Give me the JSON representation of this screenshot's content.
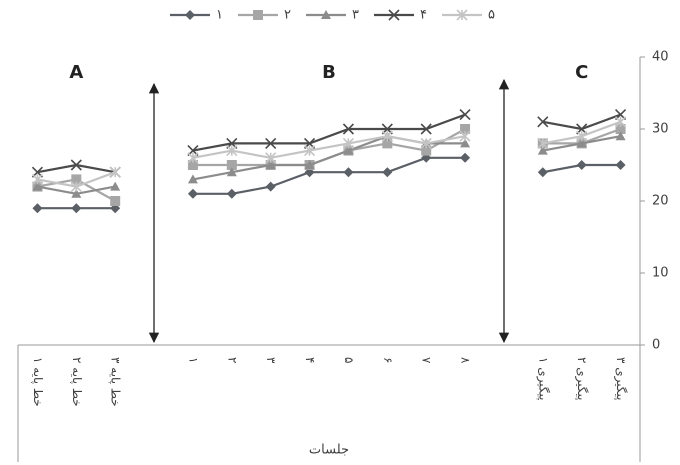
{
  "chart_data": {
    "type": "line",
    "categories": [
      "خط پایه ۱",
      "خط پایه ۲",
      "خط پایه ۳",
      null,
      "۱",
      "۲",
      "۳",
      "۴",
      "۵",
      "۶",
      "۷",
      "۸",
      null,
      "پیگیری ۱",
      "پیگیری ۲",
      "پیگیری ۳"
    ],
    "series": [
      {
        "name": "۱",
        "color": "#5b5f66",
        "marker": "diamond",
        "values": [
          19,
          19,
          19,
          null,
          21,
          21,
          22,
          24,
          24,
          24,
          26,
          26,
          null,
          24,
          25,
          25
        ]
      },
      {
        "name": "۲",
        "color": "#a6a6a6",
        "marker": "square",
        "values": [
          22,
          23,
          20,
          null,
          25,
          25,
          25,
          25,
          27,
          28,
          27,
          30,
          null,
          28,
          28,
          30
        ]
      },
      {
        "name": "۳",
        "color": "#8c8c8c",
        "marker": "triangle",
        "values": [
          22,
          21,
          22,
          null,
          23,
          24,
          25,
          25,
          27,
          29,
          28,
          28,
          null,
          27,
          28,
          29
        ]
      },
      {
        "name": "۴",
        "color": "#4a4a4a",
        "marker": "x",
        "values": [
          24,
          25,
          24,
          null,
          27,
          28,
          28,
          28,
          30,
          30,
          30,
          32,
          null,
          31,
          30,
          32
        ]
      },
      {
        "name": "۵",
        "color": "#c4c4c4",
        "marker": "star",
        "values": [
          23,
          22,
          24,
          null,
          26,
          27,
          26,
          27,
          28,
          29,
          28,
          29,
          null,
          28,
          29,
          31
        ]
      }
    ],
    "annotations": [
      "A",
      "B",
      "C"
    ],
    "x_label": "جلسات",
    "ylim": [
      0,
      40
    ],
    "yticks": [
      0,
      10,
      20,
      30,
      40
    ],
    "grid": false,
    "legend": "top"
  }
}
